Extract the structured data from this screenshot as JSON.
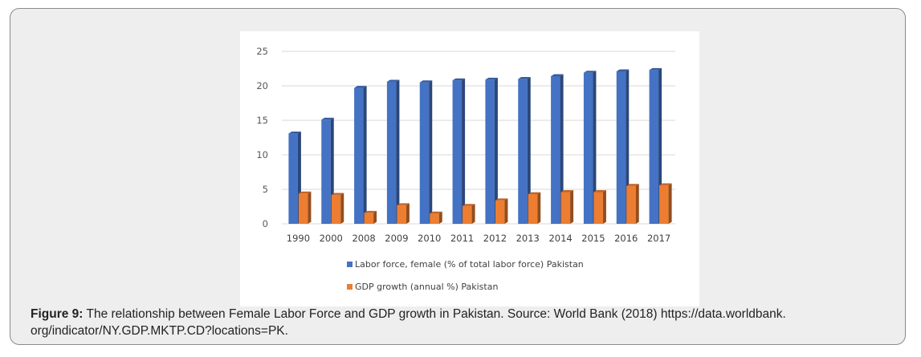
{
  "caption": {
    "label": "Figure 9:",
    "text": " The relationship between Female Labor Force and GDP growth in Pakistan. Source: World Bank (2018) https://data.worldbank.",
    "text2": "org/indicator/NY.GDP.MKTP.CD?locations=PK."
  },
  "chart_data": {
    "type": "bar",
    "categories": [
      "1990",
      "2000",
      "2008",
      "2009",
      "2010",
      "2011",
      "2012",
      "2013",
      "2014",
      "2015",
      "2016",
      "2017"
    ],
    "series": [
      {
        "name": "Labor force, female (% of total labor force) Pakistan",
        "color": "#4472C4",
        "values": [
          13.1,
          15.1,
          19.7,
          20.6,
          20.5,
          20.8,
          20.9,
          21.0,
          21.4,
          21.9,
          22.1,
          22.3
        ]
      },
      {
        "name": "GDP growth (annual %) Pakistan",
        "color": "#ED7D31",
        "values": [
          4.4,
          4.2,
          1.6,
          2.7,
          1.5,
          2.6,
          3.4,
          4.3,
          4.6,
          4.6,
          5.5,
          5.6
        ]
      }
    ],
    "y_ticks": [
      "0",
      "5",
      "10",
      "15",
      "20",
      "25"
    ],
    "ylim": [
      0,
      25
    ],
    "grid": true,
    "legend_position": "bottom",
    "title": "",
    "xlabel": "",
    "ylabel": ""
  }
}
